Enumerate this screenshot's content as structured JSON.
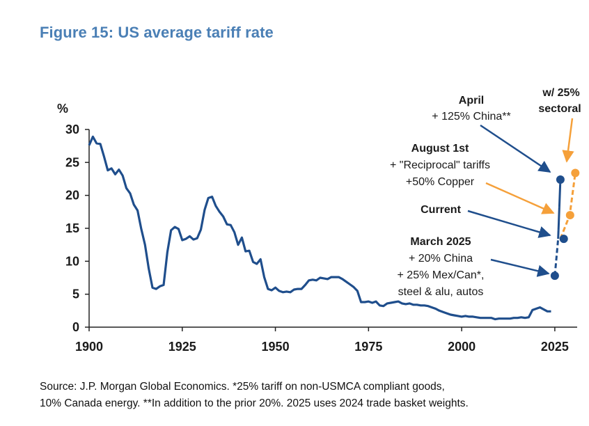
{
  "figure": {
    "title": "Figure 15: US average tariff rate",
    "source_line1": "Source: J.P. Morgan Global Economics. *25% tariff on non-USMCA compliant goods,",
    "source_line2": "10% Canada energy. **In addition to the prior 20%. 2025 uses 2024 trade basket weights."
  },
  "colors": {
    "series": "#1f4e8c",
    "sectoral": "#f5a03a",
    "title": "#4a7fb5"
  },
  "chart_data": {
    "type": "line",
    "title": "Figure 15: US average tariff rate",
    "ylabel": "%",
    "xlabel": "",
    "xlim": [
      1900,
      2031
    ],
    "ylim": [
      0,
      30
    ],
    "xticks": [
      1900,
      1925,
      1950,
      1975,
      2000,
      2025
    ],
    "yticks": [
      0,
      5,
      10,
      15,
      20,
      25,
      30
    ],
    "series": [
      {
        "name": "US average tariff rate",
        "x": [
          1900,
          1901,
          1902,
          1903,
          1904,
          1905,
          1906,
          1907,
          1908,
          1909,
          1910,
          1911,
          1912,
          1913,
          1914,
          1915,
          1916,
          1917,
          1918,
          1919,
          1920,
          1921,
          1922,
          1923,
          1924,
          1925,
          1926,
          1927,
          1928,
          1929,
          1930,
          1931,
          1932,
          1933,
          1934,
          1935,
          1936,
          1937,
          1938,
          1939,
          1940,
          1941,
          1942,
          1943,
          1944,
          1945,
          1946,
          1947,
          1948,
          1949,
          1950,
          1951,
          1952,
          1953,
          1954,
          1955,
          1956,
          1957,
          1958,
          1959,
          1960,
          1961,
          1962,
          1963,
          1964,
          1965,
          1966,
          1967,
          1968,
          1969,
          1970,
          1971,
          1972,
          1973,
          1974,
          1975,
          1976,
          1977,
          1978,
          1979,
          1980,
          1981,
          1982,
          1983,
          1984,
          1985,
          1986,
          1987,
          1988,
          1989,
          1990,
          1991,
          1992,
          1993,
          1994,
          1995,
          1996,
          1997,
          1998,
          1999,
          2000,
          2001,
          2002,
          2003,
          2004,
          2005,
          2006,
          2007,
          2008,
          2009,
          2010,
          2011,
          2012,
          2013,
          2014,
          2015,
          2016,
          2017,
          2018,
          2019,
          2020,
          2021,
          2022,
          2023,
          2024
        ],
        "y": [
          27.6,
          28.9,
          27.9,
          27.8,
          25.9,
          23.8,
          24.1,
          23.2,
          23.9,
          23.0,
          21.1,
          20.3,
          18.6,
          17.7,
          14.9,
          12.5,
          8.9,
          6.0,
          5.8,
          6.2,
          6.4,
          11.4,
          14.7,
          15.2,
          14.9,
          13.2,
          13.4,
          13.8,
          13.3,
          13.5,
          14.8,
          17.8,
          19.6,
          19.8,
          18.4,
          17.5,
          16.8,
          15.6,
          15.5,
          14.4,
          12.5,
          13.6,
          11.5,
          11.6,
          9.9,
          9.6,
          10.3,
          7.6,
          5.8,
          5.6,
          6.0,
          5.5,
          5.3,
          5.4,
          5.3,
          5.7,
          5.8,
          5.8,
          6.4,
          7.1,
          7.2,
          7.1,
          7.5,
          7.4,
          7.3,
          7.6,
          7.6,
          7.6,
          7.3,
          6.9,
          6.5,
          6.1,
          5.5,
          3.8,
          3.8,
          3.9,
          3.7,
          3.9,
          3.3,
          3.2,
          3.6,
          3.7,
          3.8,
          3.9,
          3.6,
          3.5,
          3.6,
          3.4,
          3.4,
          3.3,
          3.3,
          3.2,
          3.0,
          2.8,
          2.5,
          2.3,
          2.1,
          1.9,
          1.8,
          1.7,
          1.6,
          1.7,
          1.6,
          1.6,
          1.5,
          1.4,
          1.4,
          1.4,
          1.4,
          1.2,
          1.3,
          1.3,
          1.3,
          1.3,
          1.4,
          1.4,
          1.5,
          1.4,
          1.5,
          2.6,
          2.8,
          3.0,
          2.7,
          2.4,
          2.4
        ]
      },
      {
        "name": "2025 announcements",
        "style": "dashed",
        "x": [
          2025,
          2025.9,
          2026.5,
          2025.9
        ],
        "y": [
          7.8,
          13.4,
          22.4,
          13.4
        ]
      },
      {
        "name": "w/ 25% sectoral",
        "style": "dashed",
        "x": [
          2026.5,
          2029.0,
          2030.5
        ],
        "y": [
          13.4,
          17.0,
          23.4
        ]
      }
    ],
    "points": [
      {
        "label": "March 2025",
        "x": 2025.0,
        "y": 7.8,
        "series": "main"
      },
      {
        "label": "Current",
        "x": 2027.4,
        "y": 13.4,
        "series": "main"
      },
      {
        "label": "April",
        "x": 2026.5,
        "y": 22.4,
        "series": "main"
      },
      {
        "label": "August 1st",
        "x": 2029.1,
        "y": 17.0,
        "series": "sectoral"
      },
      {
        "label": "w/ 25% sectoral",
        "x": 2030.5,
        "y": 23.4,
        "series": "sectoral"
      }
    ],
    "annotations": {
      "april_l1": "April",
      "april_l2": "+ 125% China**",
      "august_l1": "August 1st",
      "august_l2": "+ \"Reciprocal\" tariffs",
      "august_l3": "+50% Copper",
      "current": "Current",
      "march_l1": "March 2025",
      "march_l2": "+ 20% China",
      "march_l3": "+ 25% Mex/Can*,",
      "march_l4": "steel & alu, autos",
      "sectoral_l1": "w/ 25%",
      "sectoral_l2": "sectoral"
    }
  }
}
